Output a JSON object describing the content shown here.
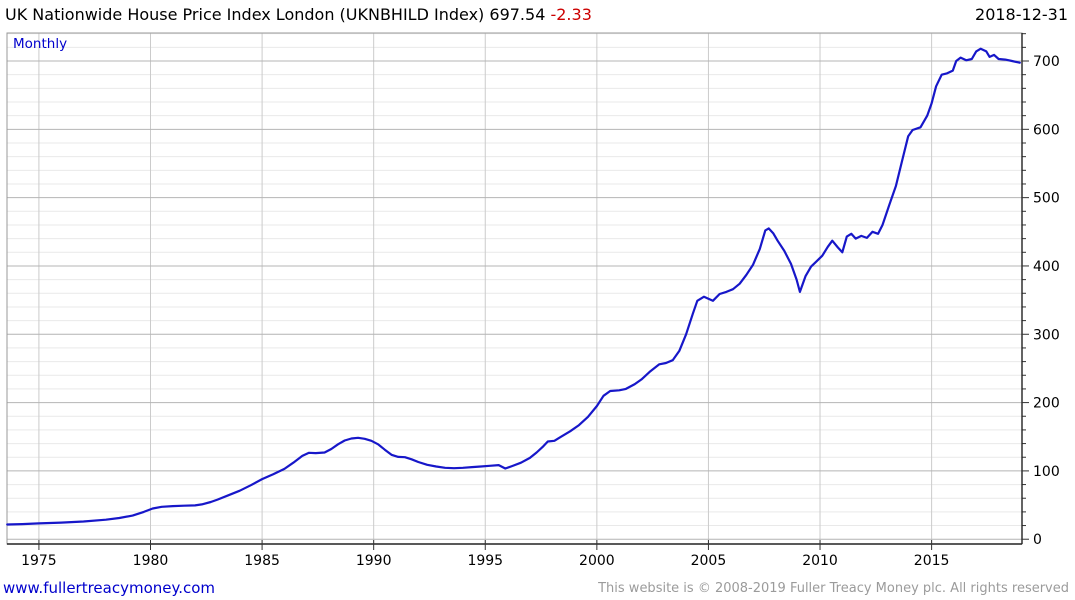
{
  "header": {
    "title": "UK Nationwide House Price Index London (UKNBHILD Index)",
    "last_price": "697.54",
    "change": "-2.33",
    "date": "2018-12-31"
  },
  "chart": {
    "frequency_label": "Monthly",
    "colors": {
      "line": "#1717c9",
      "grid_major": "#b4b4b4",
      "grid_minor": "#e9e9e9",
      "grid_vertical": "#cbcbcb",
      "axis_dark": "#222222",
      "border": "#999999",
      "tick": "#333333",
      "label": "#000000"
    }
  },
  "footer": {
    "website": "www.fullertreacymoney.com",
    "copyright": "This website is © 2008-2019 Fuller Treacy Money plc. All rights reserved"
  },
  "chart_data": {
    "type": "line",
    "title": "UK Nationwide House Price Index London (UKNBHILD Index)",
    "frequency": "Monthly",
    "last_value": 697.54,
    "last_change": -2.33,
    "last_date": "2018-12-31",
    "legend": "none",
    "grid": "both",
    "x_axis": {
      "min": 1973.57,
      "max": 2019.05,
      "ticks": [
        1975,
        1980,
        1985,
        1990,
        1995,
        2000,
        2005,
        2010,
        2015
      ]
    },
    "y_axis": {
      "min": -7,
      "max": 741,
      "ticks": [
        0,
        100,
        200,
        300,
        400,
        500,
        600,
        700
      ],
      "minor_step": 20,
      "position": "right"
    },
    "series": [
      {
        "name": "UKNBHILD Index",
        "x": [
          1973.58,
          1974.25,
          1975,
          1976,
          1977,
          1978,
          1978.6,
          1979.2,
          1979.7,
          1980.1,
          1980.5,
          1981,
          1981.5,
          1982,
          1982.3,
          1982.7,
          1983,
          1983.5,
          1984,
          1984.5,
          1985,
          1985.5,
          1986,
          1986.4,
          1986.8,
          1987.1,
          1987.4,
          1987.8,
          1988.1,
          1988.4,
          1988.7,
          1989,
          1989.3,
          1989.6,
          1989.9,
          1990.2,
          1990.5,
          1990.8,
          1991.1,
          1991.4,
          1991.7,
          1992,
          1992.4,
          1992.8,
          1993.2,
          1993.6,
          1994,
          1994.4,
          1994.8,
          1995.2,
          1995.6,
          1995.9,
          1996.2,
          1996.6,
          1997,
          1997.3,
          1997.6,
          1997.8,
          1998.1,
          1998.4,
          1998.8,
          1999.2,
          1999.6,
          2000,
          2000.3,
          2000.6,
          2001,
          2001.3,
          2001.7,
          2002,
          2002.4,
          2002.8,
          2003.1,
          2003.4,
          2003.7,
          2004,
          2004.3,
          2004.5,
          2004.8,
          2005,
          2005.2,
          2005.5,
          2005.8,
          2006.1,
          2006.4,
          2006.7,
          2007,
          2007.3,
          2007.55,
          2007.7,
          2007.9,
          2008.1,
          2008.4,
          2008.7,
          2008.95,
          2009.1,
          2009.35,
          2009.6,
          2009.85,
          2010.1,
          2010.35,
          2010.55,
          2010.8,
          2011,
          2011.2,
          2011.4,
          2011.6,
          2011.85,
          2012.1,
          2012.35,
          2012.6,
          2012.8,
          2013.1,
          2013.4,
          2013.7,
          2013.95,
          2014.15,
          2014.5,
          2014.8,
          2015,
          2015.2,
          2015.45,
          2015.7,
          2015.95,
          2016.1,
          2016.3,
          2016.55,
          2016.8,
          2017,
          2017.2,
          2017.45,
          2017.6,
          2017.8,
          2018,
          2018.3,
          2018.6,
          2018.95
        ],
        "y": [
          21.5,
          22.2,
          23.2,
          24.3,
          26,
          28.5,
          31,
          34.5,
          40,
          45,
          47.5,
          48.5,
          49,
          49.5,
          51,
          54.5,
          58,
          64.5,
          71,
          79,
          88,
          95,
          103,
          112,
          122,
          126.5,
          126,
          127,
          132,
          139,
          144.5,
          147.5,
          148.5,
          147,
          144,
          139,
          131,
          123.5,
          120.5,
          120,
          117,
          113,
          109,
          106.5,
          104.5,
          104,
          104.5,
          105.5,
          106.5,
          107.5,
          108.5,
          103.5,
          107,
          112,
          119,
          127,
          136,
          143,
          144,
          150,
          158,
          167,
          179,
          195,
          210,
          217,
          218,
          220,
          227,
          234,
          246,
          256,
          258,
          262,
          276,
          300,
          330,
          349,
          355,
          352,
          349,
          359,
          362,
          366,
          374,
          387,
          402,
          425,
          452,
          455,
          448,
          437,
          422,
          403,
          380,
          362,
          385,
          399,
          407,
          415,
          428,
          437,
          427,
          420,
          443,
          447,
          440,
          444,
          441,
          450,
          447,
          460,
          489,
          517,
          557,
          590,
          599,
          603,
          620,
          638,
          663,
          680,
          682,
          686,
          700,
          705,
          701,
          703,
          714,
          718,
          714,
          706,
          709,
          703,
          702,
          700,
          697.54
        ]
      }
    ]
  }
}
